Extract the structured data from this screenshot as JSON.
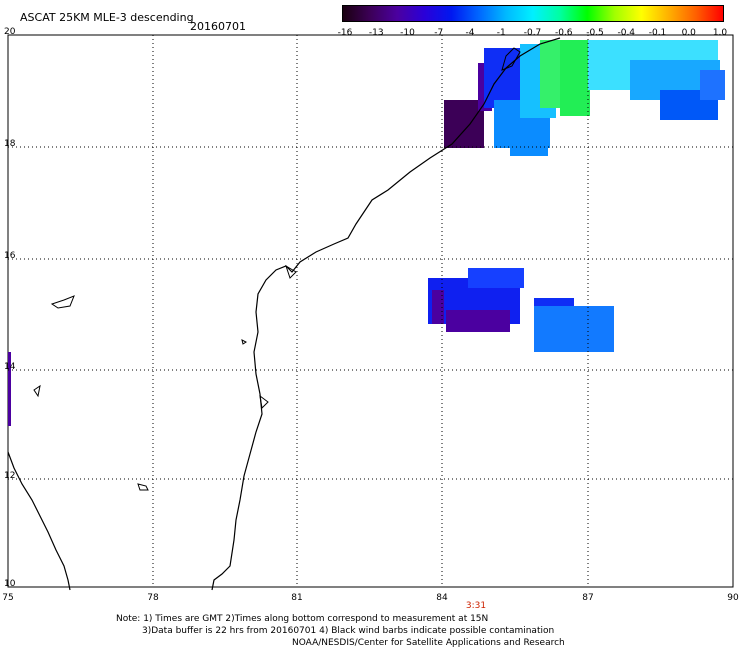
{
  "header": {
    "title": "ASCAT 25KM MLE-3 descending",
    "date": "20160701"
  },
  "colorbar": {
    "labels": [
      "-16",
      "-13",
      "-10",
      "-7",
      "-4",
      "-1",
      "-0.7",
      "-0.6",
      "-0.5",
      "-0.4",
      "-0.1",
      "0.0",
      "1.0"
    ],
    "colors": [
      "#1a0010",
      "#3c0057",
      "#4b00a0",
      "#2a00d8",
      "#0018f0",
      "#0066ff",
      "#00b8ff",
      "#00f0ff",
      "#00ffa0",
      "#00ff00",
      "#a0ff00",
      "#ffff00",
      "#ffb000",
      "#ff6000",
      "#ff0000"
    ]
  },
  "map": {
    "lon_labels": [
      "75",
      "78",
      "81",
      "84",
      "87",
      "90"
    ],
    "lat_labels": [
      "20",
      "18",
      "16",
      "14",
      "12",
      "10"
    ],
    "time_label": "3:31"
  },
  "footer": {
    "line1": "Note: 1) Times are GMT 2)Times along bottom correspond to measurement at 15N",
    "line2": "3)Data buffer is 22 hrs from 20160701 4) Black wind barbs indicate possible contamination",
    "line3": "NOAA/NESDIS/Center for Satellite Applications and Research"
  }
}
